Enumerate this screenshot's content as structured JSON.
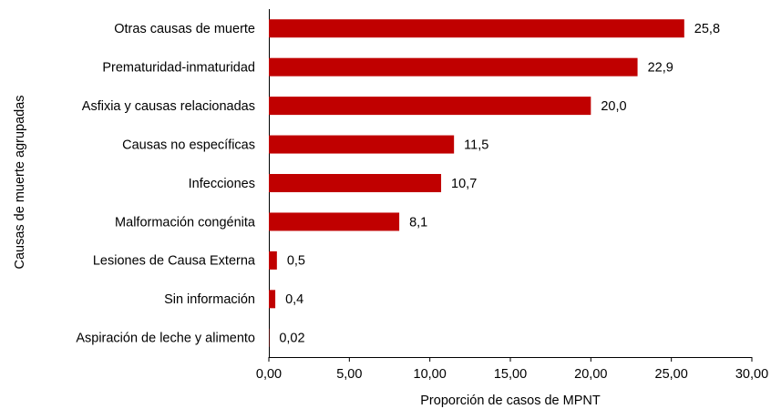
{
  "chart_data": {
    "type": "bar",
    "orientation": "horizontal",
    "categories": [
      "Otras causas de muerte",
      "Prematuridad-inmaturidad",
      "Asfixia y causas relacionadas",
      "Causas no específicas",
      "Infecciones",
      "Malformación congénita",
      "Lesiones de Causa Externa",
      "Sin información",
      "Aspiración de leche y alimento"
    ],
    "values": [
      25.8,
      22.9,
      20.0,
      11.5,
      10.7,
      8.1,
      0.5,
      0.4,
      0.02
    ],
    "value_labels": [
      "25,8",
      "22,9",
      "20,0",
      "11,5",
      "10,7",
      "8,1",
      "0,5",
      "0,4",
      "0,02"
    ],
    "color": "#c00000",
    "x_label": "Proporción de casos de MPNT",
    "y_label": "Causas de muerte agrupadas",
    "xlim": [
      0,
      30
    ],
    "xticks": [
      {
        "value": 0,
        "label": "0,00"
      },
      {
        "value": 5,
        "label": "5,00"
      },
      {
        "value": 10,
        "label": "10,00"
      },
      {
        "value": 15,
        "label": "15,00"
      },
      {
        "value": 20,
        "label": "20,00"
      },
      {
        "value": 25,
        "label": "25,00"
      },
      {
        "value": 30,
        "label": "30,00"
      }
    ],
    "grid": false
  }
}
